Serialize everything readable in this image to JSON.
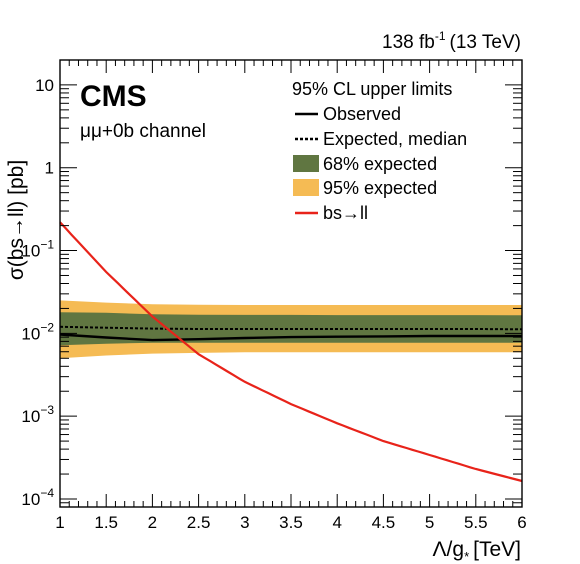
{
  "header": {
    "lumi_value": "138 fb",
    "lumi_exp": "-1",
    "energy": "(13 TeV)"
  },
  "experiment": "CMS",
  "channel": "μμ+0b channel",
  "legend": {
    "title": "95% CL upper limits",
    "observed": "Observed",
    "expected": "Expected, median",
    "band68": "68% expected",
    "band95": "95% expected",
    "theory": "bs→ll"
  },
  "colors": {
    "observed": "#000000",
    "expected": "#000000",
    "band68": "#607641",
    "band95": "#f5bb54",
    "theory": "#e8231a"
  },
  "chart_data": {
    "type": "line",
    "xlabel": "Λ/g",
    "xlabel_sub": "*",
    "xlabel_unit": "[TeV]",
    "ylabel": "σ(bs→ll) [pb]",
    "xlim": [
      1,
      6
    ],
    "ylim": [
      8e-05,
      20
    ],
    "yscale": "log",
    "x_ticks": [
      1,
      1.5,
      2,
      2.5,
      3,
      3.5,
      4,
      4.5,
      5,
      5.5,
      6
    ],
    "x_tick_labels": [
      "1",
      "1.5",
      "2",
      "2.5",
      "3",
      "3.5",
      "4",
      "4.5",
      "5",
      "5.5",
      "6"
    ],
    "y_ticks": [
      {
        "base": "10",
        "exp": "−4",
        "value": 0.0001
      },
      {
        "base": "10",
        "exp": "−3",
        "value": 0.001
      },
      {
        "base": "10",
        "exp": "−2",
        "value": 0.01
      },
      {
        "base": "10",
        "exp": "−1",
        "value": 0.1
      },
      {
        "base": "1",
        "exp": "",
        "value": 1
      },
      {
        "base": "10",
        "exp": "",
        "value": 10
      }
    ],
    "x": [
      1,
      1.5,
      2,
      2.5,
      3,
      3.5,
      4,
      4.5,
      5,
      5.5,
      6
    ],
    "observed": [
      0.0097,
      0.0089,
      0.0083,
      0.0085,
      0.0088,
      0.009,
      0.0091,
      0.0092,
      0.0093,
      0.0093,
      0.0093
    ],
    "expected": [
      0.012,
      0.0117,
      0.0114,
      0.0113,
      0.0113,
      0.0113,
      0.0113,
      0.0113,
      0.0113,
      0.0113,
      0.0112
    ],
    "band68_low": [
      0.0072,
      0.0075,
      0.0077,
      0.0077,
      0.0077,
      0.0077,
      0.0077,
      0.0077,
      0.0077,
      0.0077,
      0.0077
    ],
    "band68_high": [
      0.018,
      0.0177,
      0.017,
      0.0168,
      0.0167,
      0.0167,
      0.0166,
      0.0166,
      0.0166,
      0.0166,
      0.0165
    ],
    "band95_low": [
      0.005,
      0.0054,
      0.0057,
      0.0058,
      0.0059,
      0.0059,
      0.0059,
      0.0059,
      0.0059,
      0.0059,
      0.0059
    ],
    "band95_high": [
      0.025,
      0.0235,
      0.0225,
      0.0222,
      0.022,
      0.022,
      0.022,
      0.022,
      0.022,
      0.022,
      0.022
    ],
    "theory": [
      0.22,
      0.055,
      0.016,
      0.0056,
      0.0026,
      0.0014,
      0.00082,
      0.0005,
      0.00034,
      0.00023,
      0.000165
    ]
  }
}
